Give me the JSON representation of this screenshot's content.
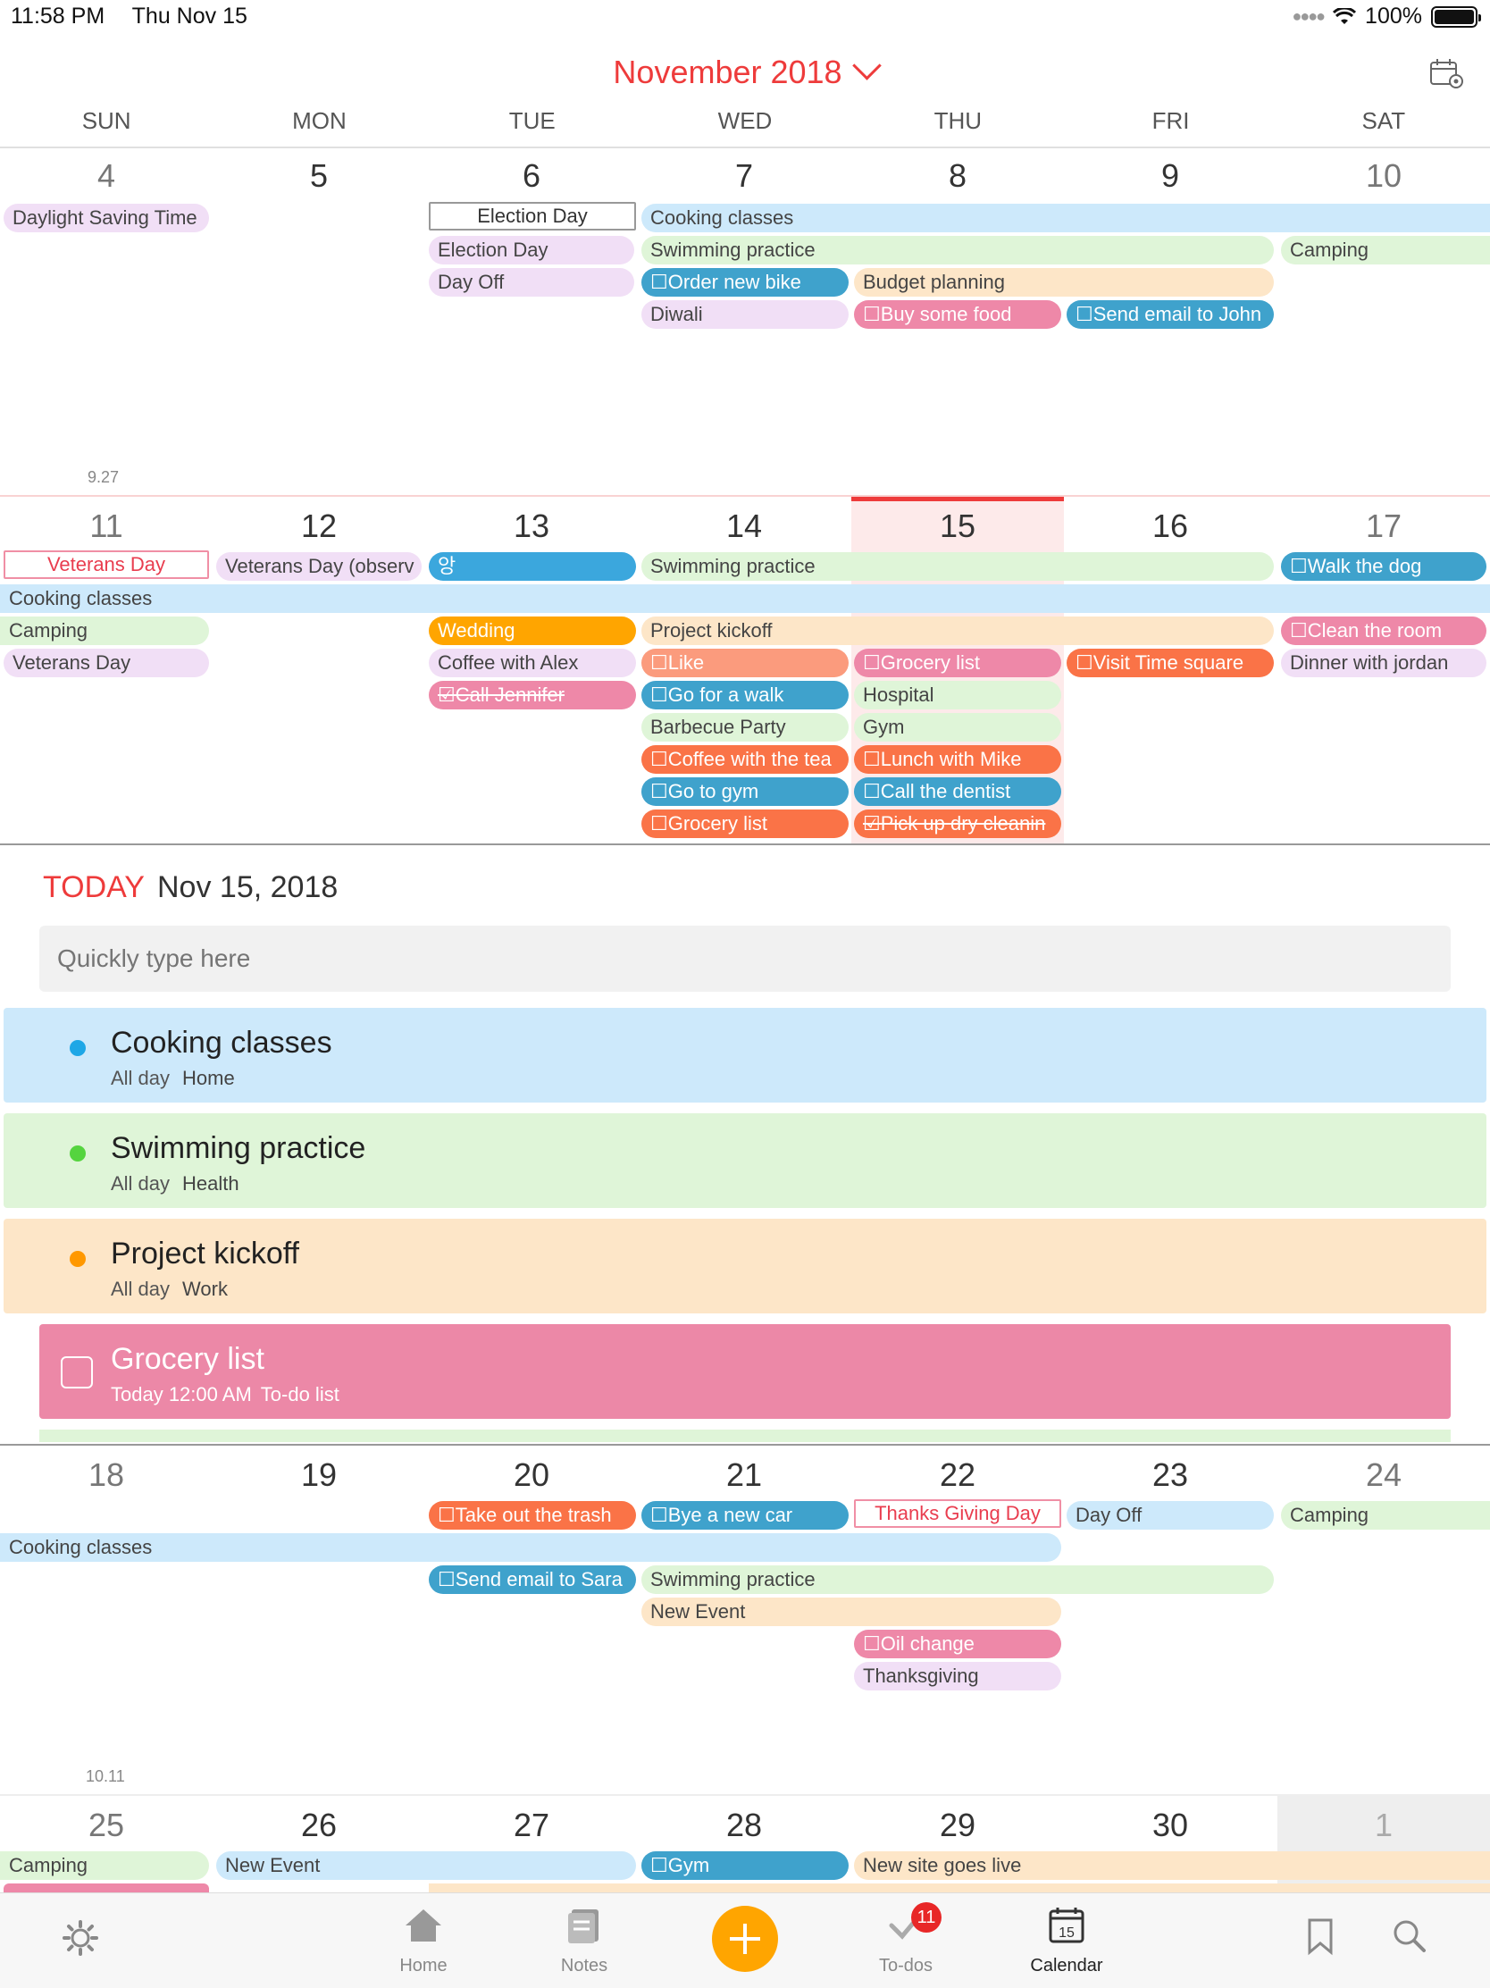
{
  "status": {
    "time": "11:58 PM",
    "date": "Thu Nov 15",
    "battery": "100%"
  },
  "header": {
    "month": "November 2018"
  },
  "weekdays": [
    "SUN",
    "MON",
    "TUE",
    "WED",
    "THU",
    "FRI",
    "SAT"
  ],
  "week1": {
    "days": [
      "4",
      "5",
      "6",
      "7",
      "8",
      "9",
      "10"
    ],
    "weeknum": "9.27",
    "events": {
      "daylight": "Daylight Saving Time",
      "election_outlined": "Election Day",
      "cooking": "Cooking classes",
      "election": "Election Day",
      "swimming": "Swimming practice",
      "camping": "Camping",
      "dayoff": "Day Off",
      "order_bike": "☐Order new bike",
      "budget": "Budget planning",
      "diwali": "Diwali",
      "buy_food": "☐Buy some food",
      "send_john": "☐Send email to John"
    }
  },
  "week2": {
    "days": [
      "11",
      "12",
      "13",
      "14",
      "15",
      "16",
      "17"
    ],
    "events": {
      "veterans_outlined": "Veterans Day",
      "veterans_observed": "Veterans Day (observ",
      "korean": "앙",
      "swimming": "Swimming practice",
      "walk_dog": "☐Walk the dog",
      "cooking": "Cooking classes",
      "camping": "Camping",
      "wedding": "Wedding",
      "project_kickoff": "Project kickoff",
      "clean_room": "☐Clean the room",
      "veterans": "Veterans Day",
      "coffee_alex": "Coffee with Alex",
      "like": "☐Like",
      "grocery_thu": "☐Grocery list",
      "visit_ts": "☐Visit Time square",
      "dinner_jordan": "Dinner with jordan",
      "call_jennifer": "☑Call Jennifer",
      "walk": "☐Go for a walk",
      "hospital": "Hospital",
      "bbq": "Barbecue Party",
      "gym": "Gym",
      "coffee_team": "☐Coffee with the tea",
      "lunch_mike": "☐Lunch with Mike",
      "go_gym": "☐Go to gym",
      "dentist": "☐Call the dentist",
      "grocery_wed": "☐Grocery list",
      "dry_clean": "☑Pick up dry cleanin"
    }
  },
  "today": {
    "label": "TODAY",
    "date": "Nov 15, 2018",
    "quick_placeholder": "Quickly type here",
    "items": [
      {
        "title": "Cooking classes",
        "time": "All day",
        "calendar": "Home",
        "color": "#3ba7e6"
      },
      {
        "title": "Swimming practice",
        "time": "All day",
        "calendar": "Health",
        "color": "#55d43f"
      },
      {
        "title": "Project kickoff",
        "time": "All day",
        "calendar": "Work",
        "color": "#ff9800"
      }
    ],
    "todo": {
      "title": "Grocery list",
      "time": "Today 12:00 AM",
      "list": "To-do list"
    }
  },
  "week3": {
    "days": [
      "18",
      "19",
      "20",
      "21",
      "22",
      "23",
      "24"
    ],
    "weeknum": "10.11",
    "events": {
      "trash": "☐Take out the trash",
      "new_car": "☐Bye a new car",
      "thanksgiving_outlined": "Thanks Giving Day",
      "dayoff": "Day Off",
      "camping": "Camping",
      "cooking": "Cooking classes",
      "send_sara": "☐Send email to Sara",
      "swimming": "Swimming practice",
      "new_event": "New Event",
      "oil": "☐Oil change",
      "thanksgiving": "Thanksgiving"
    }
  },
  "week4": {
    "days": [
      "25",
      "26",
      "27",
      "28",
      "29",
      "30",
      "1"
    ],
    "events": {
      "camping": "Camping",
      "new_event": "New Event",
      "gym": "☐Gym",
      "site_live": "New site goes live"
    }
  },
  "tabbar": {
    "home": "Home",
    "notes": "Notes",
    "todos": "To-dos",
    "todos_badge": "11",
    "calendar": "Calendar",
    "calendar_day": "15"
  }
}
